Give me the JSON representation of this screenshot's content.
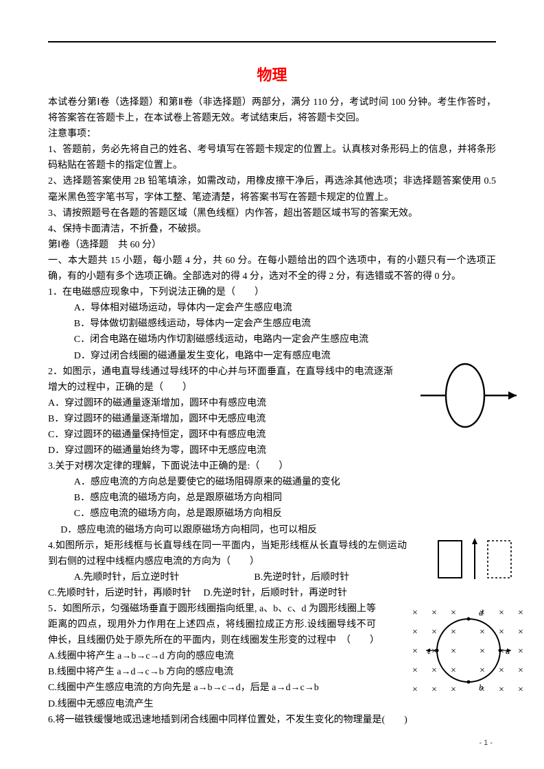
{
  "title": "物理",
  "header_rule_color": "#000",
  "title_color": "#ff0000",
  "intro_lines": [
    "本试卷分第Ⅰ卷（选择题）和第Ⅱ卷（非选择题）两部分，满分 110 分，考试时间 100 分钟。考生作答时，将答案答在答题卡上，在本试卷上答题无效。考试结束后，将答题卡交回。",
    "注意事项：",
    "1、答题前，务必先将自己的姓名、考号填写在答题卡规定的位置上。认真核对条形码上的信息，并将条形码粘贴在答题卡的指定位置上。",
    "2、选择题答案使用 2B 铅笔填涂，如需改动，用橡皮擦干净后，再选涂其他选项；非选择题答案使用 0.5 毫米黑色签字笔书写，字体工整、笔迹清楚，将答案书写在答题卡规定的位置上。",
    "3、请按照题号在各题的答题区域（黑色线框）内作答，超出答题区域书写的答案无效。",
    "4、保持卡面清洁，不折叠，不破损。",
    "第Ⅰ卷（选择题　共 60 分）",
    "一、本大题共 15 小题，每小题 4 分，共 60 分。在每小题给出的四个选项中，有的小题只有一个选项正确，有的小题有多个选项正确。全部选对的得 4 分，选对不全的得 2 分，有选错或不答的得 0 分。"
  ],
  "q1": {
    "stem": "1．在电磁感应现象中，下列说法正确的是（　　）",
    "A": "A．导体相对磁场运动，导体内一定会产生感应电流",
    "B": "B．导体做切割磁感线运动，导体内一定会产生感应电流",
    "C": "C．闭合电路在磁场内作切割磁感线运动，电路内一定会产生感应电流",
    "D": "D．穿过闭合线圈的磁通量发生变化，电路中一定有感应电流"
  },
  "q2": {
    "stem": "2．如图示，通电直导线通过导线环的中心并与环面垂直，在直导线中的电流逐渐增大的过程中，正确的是（　　）",
    "A": "A．穿过圆环的磁通量逐渐增加，圆环中有感应电流",
    "B": "B．穿过圆环的磁通量逐渐增加，圆环中无感应电流",
    "C": "C．穿过圆环的磁通量保持恒定，圆环中有感应电流",
    "D": "D．穿过圆环的磁通量始终为零，圆环中无感应电流",
    "fig": {
      "stroke": "#000"
    }
  },
  "q3": {
    "stem": "3.关于对楞次定律的理解，下面说法中正确的是:（　　）",
    "A": "A．感应电流的方向总是要使它的磁场阻碍原来的磁通量的变化",
    "B": "B．感应电流的磁场方向，总是跟原磁场方向相同",
    "C": "C．感应电流的磁场方向，总是跟原磁场方向相反",
    "D": "D．感应电流的磁场方向可以跟原磁场方向相同，也可以相反"
  },
  "q4": {
    "stem": "4.如图所示，矩形线框与长直导线在同一平面内，当矩形线框从长直导线的左侧运动到右侧的过程中线框内感应电流的方向为（　　）",
    "A": "A.先顺时针，后立逆时针",
    "B": "B.先逆时针，后顺时针",
    "C": "C.先顺时针，后逆时针，再顺时针",
    "D": "D.先逆时针，后顺时针，再逆时针",
    "fig": {
      "stroke": "#000"
    }
  },
  "q5": {
    "stem": "5．如图所示，匀强磁场垂直于圆形线圈指向纸里, a、b、c、d 为圆形线圈上等距离的四点，现用外力作用在上述四点，将线圈拉成正方形.设线圈导线不可伸长，且线圈仍处于原先所在的平面内，则在线圈发生形变的过程中　（　　）",
    "A": "A.线圈中将产生 a→b→c→d 方向的感应电流",
    "B": "B.线圈中将产生 a→d→c→b 方向的感应电流",
    "C": "C.线圈中产生感应电流的方向先是 a→b→c→d，后是 a→d→c→b",
    "D": "D.线圈中无感应电流产生",
    "fig": {
      "stroke": "#000"
    },
    "labels": {
      "a": "a",
      "b": "b",
      "c": "c",
      "d": "d"
    }
  },
  "q6": {
    "stem": "6.将一磁铁缓慢地或迅速地插到闭合线圈中同样位置处，不发生变化的物理量是(　　)"
  },
  "page_number": "- 1 -"
}
